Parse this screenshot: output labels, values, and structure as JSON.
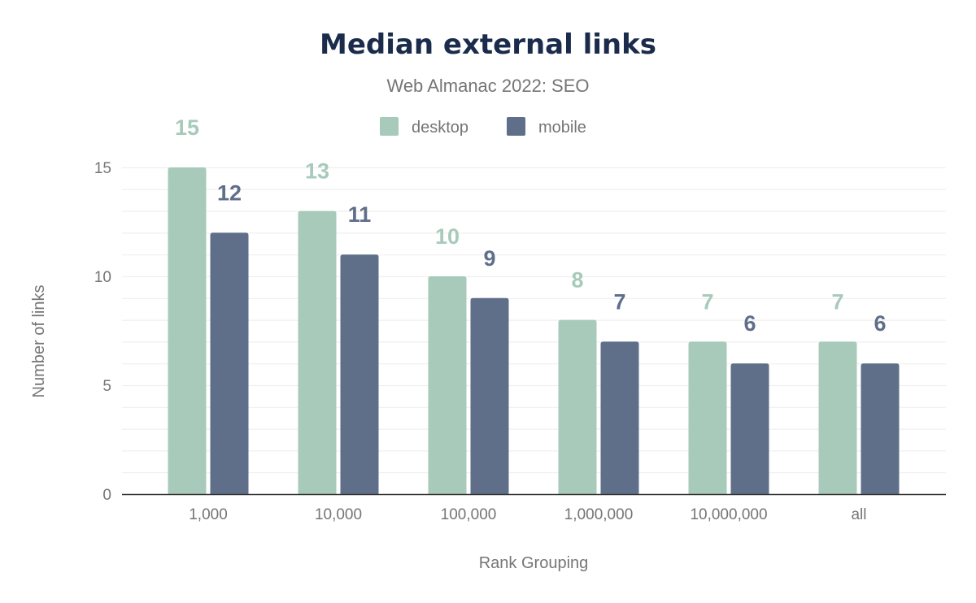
{
  "chart_data": {
    "type": "bar",
    "title": "Median external links",
    "subtitle": "Web Almanac 2022: SEO",
    "xlabel": "Rank Grouping",
    "ylabel": "Number of links",
    "categories": [
      "1,000",
      "10,000",
      "100,000",
      "1,000,000",
      "10,000,000",
      "all"
    ],
    "series": [
      {
        "name": "desktop",
        "color": "#a8cabb",
        "values": [
          15,
          13,
          10,
          8,
          7,
          7
        ]
      },
      {
        "name": "mobile",
        "color": "#5f6f8a",
        "values": [
          12,
          11,
          9,
          7,
          6,
          6
        ]
      }
    ],
    "ylim": [
      0,
      15
    ],
    "yticks": [
      "0",
      "5",
      "10",
      "15"
    ],
    "grid": true,
    "legend": "top-center",
    "data_labels": true
  }
}
